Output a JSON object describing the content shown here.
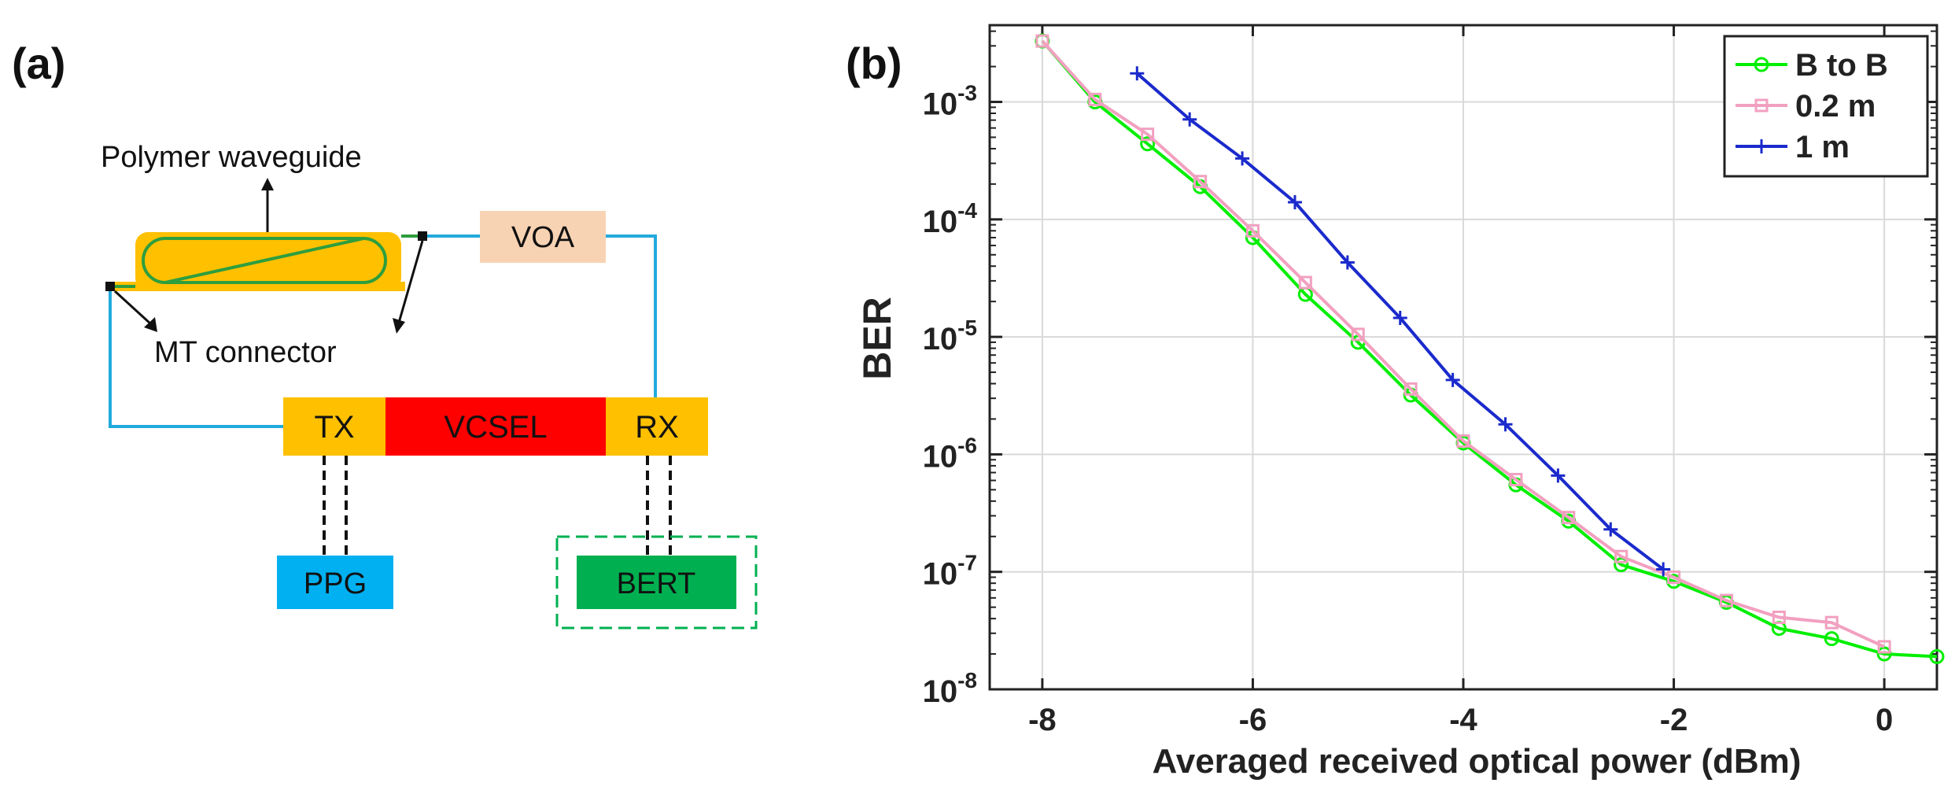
{
  "panel_a": {
    "label": "(a)",
    "polymer_label": "Polymer waveguide",
    "mt_label": "MT connector",
    "voa": "VOA",
    "tx": "TX",
    "vcsel": "VCSEL",
    "rx": "RX",
    "ppg": "PPG",
    "bert": "BERT",
    "colors": {
      "waveguide": "#ffc000",
      "waveguide_core": "#2e9e3e",
      "fiber": "#22aadd",
      "voa": "#f8d3b3",
      "txrx": "#ffc000",
      "vcsel": "#ff0000",
      "ppg": "#00b0f0",
      "bert": "#00b050",
      "bert_border": "#00b050"
    }
  },
  "panel_b": {
    "label": "(b)"
  },
  "chart_data": {
    "type": "line",
    "title": "",
    "xlabel": "Averaged received optical power (dBm)",
    "ylabel": "BER",
    "yscale": "log",
    "xlim": [
      -8.5,
      0.5
    ],
    "ylim": [
      1e-08,
      0.0045
    ],
    "xticks": [
      -8,
      -6,
      -4,
      -2,
      0
    ],
    "xtick_labels": [
      "-8",
      "-6",
      "-4",
      "-2",
      "0"
    ],
    "ytick_labels": [
      "10-8",
      "10-7",
      "10-6",
      "10-5",
      "10-4",
      "10-3"
    ],
    "grid": true,
    "legend_position": "top-right",
    "series": [
      {
        "name": "B to B",
        "color": "#00ee00",
        "marker": "circle",
        "x": [
          -8,
          -7.5,
          -7,
          -6.5,
          -6,
          -5.5,
          -5,
          -4.5,
          -4,
          -3.5,
          -3,
          -2.5,
          -2,
          -1.5,
          -1,
          -0.5,
          0,
          0.5
        ],
        "y": [
          0.0033,
          0.001,
          0.00044,
          0.00019,
          7e-05,
          2.3e-05,
          9e-06,
          3.2e-06,
          1.25e-06,
          5.5e-07,
          2.7e-07,
          1.15e-07,
          8.3e-08,
          5.5e-08,
          3.3e-08,
          2.7e-08,
          2e-08,
          1.9e-08
        ]
      },
      {
        "name": "0.2 m",
        "color": "#f2a0c0",
        "marker": "square",
        "x": [
          -8,
          -7.5,
          -7,
          -6.5,
          -6,
          -5.5,
          -5,
          -4.5,
          -4,
          -3.5,
          -3,
          -2.5,
          -2,
          -1.5,
          -1,
          -0.5,
          0
        ],
        "y": [
          0.0033,
          0.00105,
          0.00053,
          0.00021,
          8e-05,
          2.9e-05,
          1.05e-05,
          3.6e-06,
          1.3e-06,
          6.1e-07,
          2.9e-07,
          1.35e-07,
          9e-08,
          5.7e-08,
          4.1e-08,
          3.7e-08,
          2.3e-08
        ]
      },
      {
        "name": "1 m",
        "color": "#1a2acc",
        "marker": "plus",
        "x": [
          -7.1,
          -6.6,
          -6.1,
          -5.6,
          -5.1,
          -4.6,
          -4.1,
          -3.6,
          -3.1,
          -2.6,
          -2.1
        ],
        "y": [
          0.00175,
          0.00071,
          0.00033,
          0.00014,
          4.3e-05,
          1.45e-05,
          4.3e-06,
          1.8e-06,
          6.6e-07,
          2.3e-07,
          1.05e-07
        ]
      }
    ]
  }
}
